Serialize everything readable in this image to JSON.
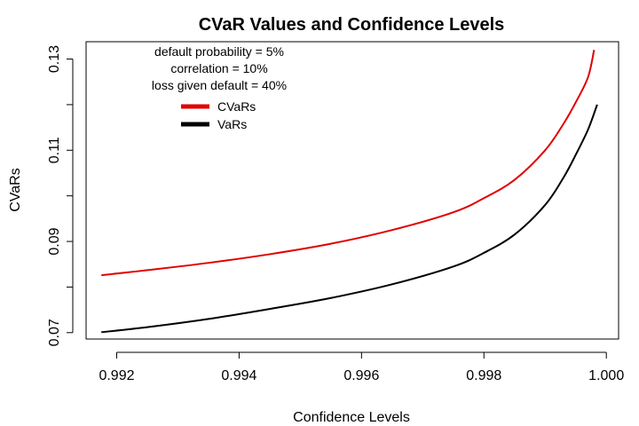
{
  "chart_data": {
    "type": "line",
    "title": "CVaR Values and Confidence Levels",
    "xlabel": "Confidence Levels",
    "ylabel": "CVaRs",
    "xlim": [
      0.9915,
      1.0002
    ],
    "ylim": [
      0.0686,
      0.1338
    ],
    "x_ticks": [
      {
        "value": 0.992,
        "label": "0.992"
      },
      {
        "value": 0.994,
        "label": "0.994"
      },
      {
        "value": 0.996,
        "label": "0.996"
      },
      {
        "value": 0.998,
        "label": "0.998"
      },
      {
        "value": 1.0,
        "label": "1.000"
      }
    ],
    "y_ticks": [
      {
        "value": 0.07,
        "label": "0.07"
      },
      {
        "value": 0.08,
        "label": ""
      },
      {
        "value": 0.09,
        "label": "0.09"
      },
      {
        "value": 0.1,
        "label": ""
      },
      {
        "value": 0.11,
        "label": "0.11"
      },
      {
        "value": 0.12,
        "label": ""
      },
      {
        "value": 0.13,
        "label": "0.13"
      }
    ],
    "annotations": [
      "default probability = 5%",
      "correlation = 10%",
      "loss given default = 40%"
    ],
    "legend": {
      "position": "top-left"
    },
    "series": [
      {
        "name": "CVaRs",
        "color": "#e00000",
        "points": [
          [
            0.99175,
            0.0826
          ],
          [
            0.9925,
            0.0837
          ],
          [
            0.9935,
            0.0853
          ],
          [
            0.9945,
            0.0872
          ],
          [
            0.9955,
            0.0895
          ],
          [
            0.9965,
            0.0925
          ],
          [
            0.9975,
            0.0964
          ],
          [
            0.998,
            0.0995
          ],
          [
            0.9985,
            0.1035
          ],
          [
            0.999,
            0.11
          ],
          [
            0.9993,
            0.1158
          ],
          [
            0.9995,
            0.1205
          ],
          [
            0.9997,
            0.126
          ],
          [
            0.9998,
            0.132
          ]
        ]
      },
      {
        "name": "VaRs",
        "color": "#000000",
        "points": [
          [
            0.99175,
            0.0701
          ],
          [
            0.9925,
            0.0712
          ],
          [
            0.9935,
            0.073
          ],
          [
            0.9945,
            0.0752
          ],
          [
            0.9955,
            0.0776
          ],
          [
            0.9965,
            0.0806
          ],
          [
            0.9975,
            0.0845
          ],
          [
            0.998,
            0.0875
          ],
          [
            0.9985,
            0.0915
          ],
          [
            0.999,
            0.098
          ],
          [
            0.9993,
            0.104
          ],
          [
            0.9995,
            0.109
          ],
          [
            0.9997,
            0.1145
          ],
          [
            0.99985,
            0.12
          ]
        ]
      }
    ]
  }
}
